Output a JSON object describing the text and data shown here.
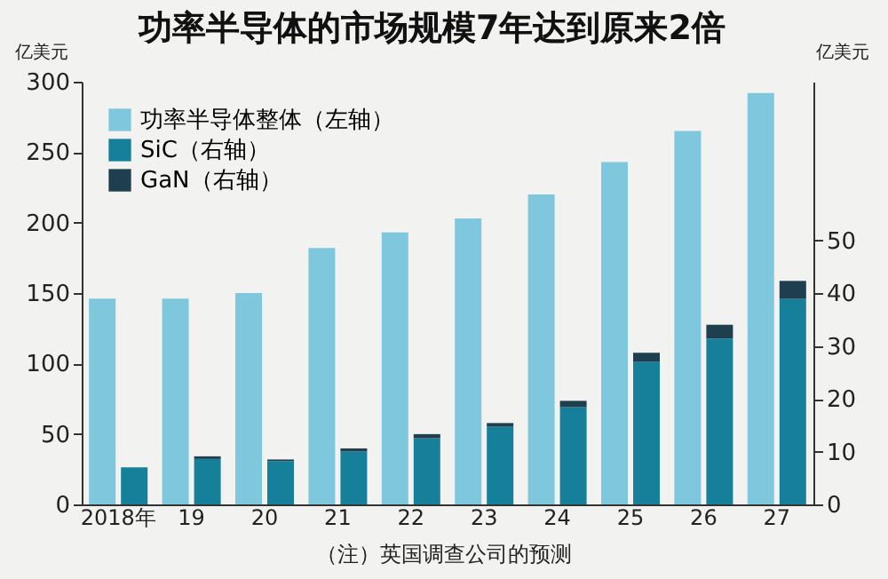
{
  "chart_data": {
    "type": "bar",
    "title": "功率半导体的市场规模7年达到原来2倍",
    "categories": [
      "2018年",
      "19",
      "20",
      "21",
      "22",
      "23",
      "24",
      "25",
      "26",
      "27"
    ],
    "series": [
      {
        "name": "功率半导体整体（左轴）",
        "color": "#7fc7dc",
        "values": [
          146,
          146,
          150,
          182,
          193,
          203,
          220,
          243,
          265,
          292
        ]
      },
      {
        "name": "SiC（右轴）",
        "color": "#167f99",
        "axis": "y2",
        "values": [
          7,
          8.6,
          8.2,
          10.0,
          12.5,
          14.7,
          18.4,
          27.0,
          31.4,
          38.9
        ]
      },
      {
        "name": "GaN（右轴）",
        "color": "#1f3f4f",
        "axis": "y2",
        "values": [
          0,
          0.5,
          0.3,
          0.6,
          0.8,
          0.7,
          1.2,
          1.7,
          2.6,
          3.4
        ]
      }
    ],
    "stacked": true,
    "ylabel": "亿美元",
    "y2label": "亿美元",
    "ylim": [
      0,
      300
    ],
    "yticks": [
      0,
      50,
      100,
      150,
      200,
      250,
      300
    ],
    "y2lim": [
      0,
      80
    ],
    "y2ticks": [
      0,
      10,
      20,
      30,
      40,
      50
    ],
    "grid": false,
    "legend": "top left",
    "annotations": [
      "（注）英国调查公司的预测"
    ]
  }
}
